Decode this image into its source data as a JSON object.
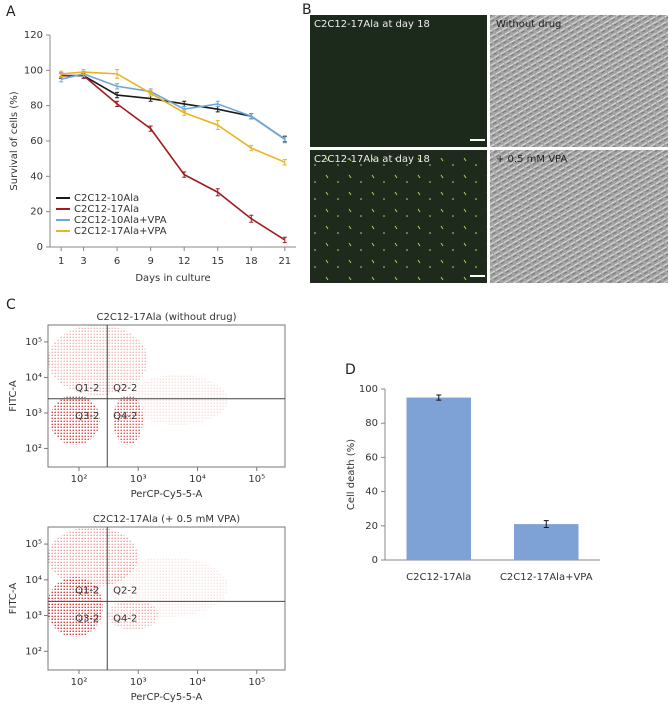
{
  "chart_data": [
    {
      "type": "line",
      "panel": "A",
      "x": [
        1,
        3,
        6,
        9,
        12,
        15,
        18,
        21
      ],
      "xlim": [
        0,
        22
      ],
      "xticks": [
        1,
        3,
        6,
        9,
        12,
        15,
        18,
        21
      ],
      "ylim": [
        0,
        120
      ],
      "yticks": [
        0,
        20,
        40,
        60,
        80,
        100,
        120
      ],
      "x_label": "Days in culture",
      "y_label": "Survival of cells (%)",
      "legend": "lower left",
      "series": [
        {
          "name": "C2C12-10Ala",
          "color": "#1a1a1a",
          "values": [
            97,
            97,
            86,
            84,
            81,
            78,
            74,
            61
          ],
          "errors": [
            1.5,
            1.5,
            1.5,
            1.5,
            1.5,
            1.5,
            1.5,
            1.5
          ]
        },
        {
          "name": "C2C12-17Ala",
          "color": "#a01c20",
          "values": [
            97,
            97,
            81,
            67,
            41,
            31,
            16,
            4
          ],
          "errors": [
            1.5,
            1.5,
            1.5,
            1.5,
            1.5,
            2,
            2,
            1.5
          ]
        },
        {
          "name": "C2C12-10Ala+VPA",
          "color": "#6fa8dc",
          "values": [
            95,
            98,
            91,
            88,
            78,
            81,
            74,
            61
          ],
          "errors": [
            1.5,
            1.5,
            1.5,
            1.5,
            1.5,
            1.5,
            1.5,
            2
          ]
        },
        {
          "name": "C2C12-17Ala+VPA",
          "color": "#e8b420",
          "values": [
            98,
            99,
            98,
            87,
            76,
            69,
            56,
            48
          ],
          "errors": [
            1.5,
            1.5,
            2.5,
            1.5,
            1.5,
            2.5,
            1.5,
            1.5
          ]
        }
      ]
    },
    {
      "type": "scatter",
      "panel": "C",
      "title": "C2C12-17Ala (without drug)",
      "log_scale": true,
      "color": "#d01010",
      "xlim": [
        30,
        300000
      ],
      "ylim": [
        30,
        300000
      ],
      "xticks": [
        {
          "value": 100,
          "label": "10²"
        },
        {
          "value": 1000,
          "label": "10³"
        },
        {
          "value": 10000,
          "label": "10⁴"
        },
        {
          "value": 100000,
          "label": "10⁵"
        }
      ],
      "yticks": [
        {
          "value": 100,
          "label": "10²"
        },
        {
          "value": 1000,
          "label": "10³"
        },
        {
          "value": 10000,
          "label": "10⁴"
        },
        {
          "value": 100000,
          "label": "10⁵"
        }
      ],
      "x_label": "PerCP-Cy5-5-A",
      "y_label": "FITC-A",
      "gate": {
        "x": 300,
        "y": 2500
      },
      "quadrants": [
        "Q1-2",
        "Q2-2",
        "Q3-2",
        "Q4-2"
      ]
    },
    {
      "type": "scatter",
      "title": "C2C12-17Ala (+ 0.5 mM VPA)",
      "log_scale": true,
      "color": "#d01010",
      "xlim": [
        30,
        300000
      ],
      "ylim": [
        30,
        300000
      ],
      "xticks": [
        {
          "value": 100,
          "label": "10²"
        },
        {
          "value": 1000,
          "label": "10³"
        },
        {
          "value": 10000,
          "label": "10⁴"
        },
        {
          "value": 100000,
          "label": "10⁵"
        }
      ],
      "yticks": [
        {
          "value": 100,
          "label": "10²"
        },
        {
          "value": 1000,
          "label": "10³"
        },
        {
          "value": 10000,
          "label": "10⁴"
        },
        {
          "value": 100000,
          "label": "10⁵"
        }
      ],
      "x_label": "PerCP-Cy5-5-A",
      "y_label": "FITC-A",
      "gate": {
        "x": 300,
        "y": 2500
      },
      "quadrants": [
        "Q1-2",
        "Q2-2",
        "Q3-2",
        "Q4-2"
      ]
    },
    {
      "type": "bar",
      "panel": "D",
      "categories": [
        "C2C12-17Ala",
        "C2C12-17Ala+VPA"
      ],
      "values": [
        95,
        21
      ],
      "errors": [
        1.5,
        2
      ],
      "color": "#7ea2d6",
      "ylim": [
        0,
        100
      ],
      "yticks": [
        0,
        20,
        40,
        60,
        80,
        100
      ],
      "y_label": "Cell death (%)"
    }
  ],
  "image_panel": {
    "panel": "B",
    "captions": [
      "C2C12-17Ala at day 18",
      "Without drug",
      "C2C12-17Ala at day 18",
      "+ 0.5 mM VPA"
    ]
  }
}
